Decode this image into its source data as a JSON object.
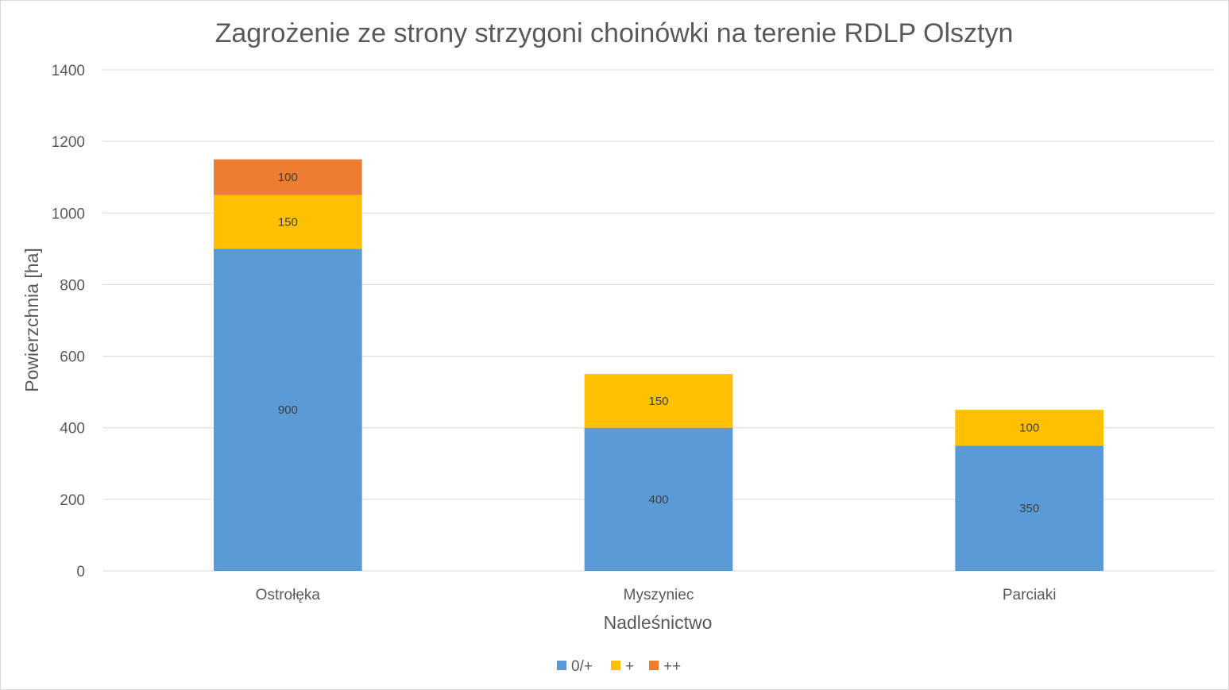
{
  "chart_data": {
    "type": "bar",
    "stacked": true,
    "title": "Zagrożenie ze strony strzygoni choinówki na terenie RDLP Olsztyn",
    "xlabel": "Nadleśnictwo",
    "ylabel": "Powierzchnia [ha]",
    "categories": [
      "Ostrołęka",
      "Myszyniec",
      "Parciaki"
    ],
    "series": [
      {
        "name": "0/+",
        "color": "#5b9bd5",
        "values": [
          900,
          400,
          350
        ]
      },
      {
        "name": "+",
        "color": "#ffc000",
        "values": [
          150,
          150,
          100
        ]
      },
      {
        "name": "++",
        "color": "#ed7d31",
        "values": [
          100,
          0,
          0
        ]
      }
    ],
    "ylim": [
      0,
      1400
    ],
    "yticks": [
      0,
      200,
      400,
      600,
      800,
      1000,
      1200,
      1400
    ],
    "grid": true,
    "legend_position": "bottom",
    "data_labels": true
  }
}
